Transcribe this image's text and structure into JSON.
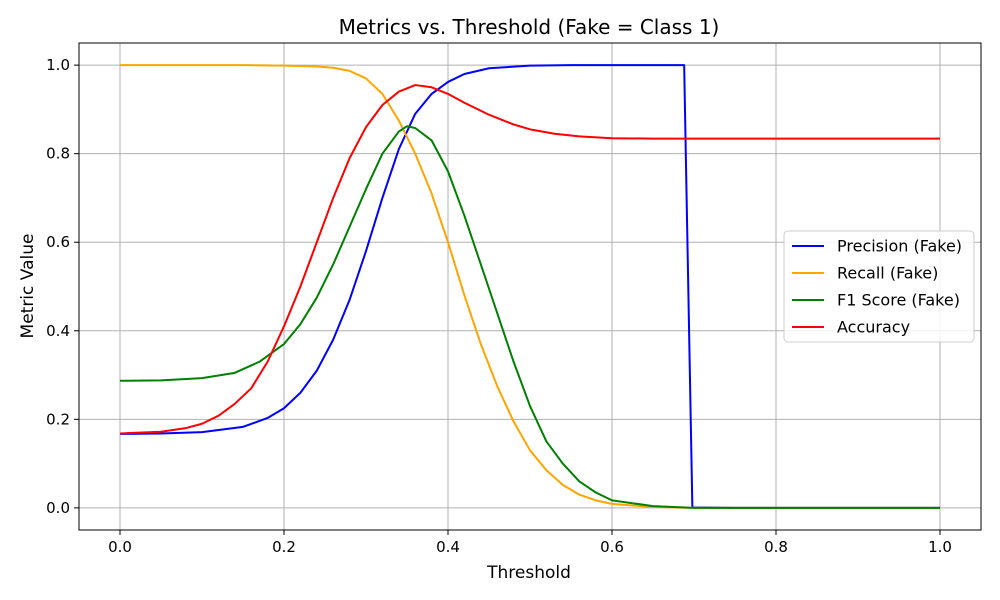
{
  "chart_data": {
    "type": "line",
    "title": "Metrics vs. Threshold (Fake = Class 1)",
    "xlabel": "Threshold",
    "ylabel": "Metric Value",
    "xlim": [
      -0.05,
      1.05
    ],
    "ylim": [
      -0.05,
      1.05
    ],
    "xticks": [
      0.0,
      0.2,
      0.4,
      0.6,
      0.8,
      1.0
    ],
    "xtick_labels": [
      "0.0",
      "0.2",
      "0.4",
      "0.6",
      "0.8",
      "1.0"
    ],
    "yticks": [
      0.0,
      0.2,
      0.4,
      0.6,
      0.8,
      1.0
    ],
    "ytick_labels": [
      "0.0",
      "0.2",
      "0.4",
      "0.6",
      "0.8",
      "1.0"
    ],
    "grid": true,
    "legend_position": "center-right",
    "series": [
      {
        "name": "Precision (Fake)",
        "color": "#0000ff",
        "points": [
          [
            0.0,
            0.167
          ],
          [
            0.05,
            0.168
          ],
          [
            0.1,
            0.171
          ],
          [
            0.15,
            0.183
          ],
          [
            0.18,
            0.203
          ],
          [
            0.2,
            0.225
          ],
          [
            0.22,
            0.26
          ],
          [
            0.24,
            0.31
          ],
          [
            0.26,
            0.38
          ],
          [
            0.28,
            0.47
          ],
          [
            0.3,
            0.58
          ],
          [
            0.32,
            0.7
          ],
          [
            0.34,
            0.81
          ],
          [
            0.36,
            0.89
          ],
          [
            0.38,
            0.935
          ],
          [
            0.4,
            0.962
          ],
          [
            0.42,
            0.98
          ],
          [
            0.45,
            0.993
          ],
          [
            0.5,
            0.999
          ],
          [
            0.55,
            1.0
          ],
          [
            0.6,
            1.0
          ],
          [
            0.65,
            1.0
          ],
          [
            0.688,
            1.0
          ],
          [
            0.698,
            0.001
          ],
          [
            0.75,
            0.0
          ],
          [
            0.8,
            0.0
          ],
          [
            0.9,
            0.0
          ],
          [
            1.0,
            0.0
          ]
        ]
      },
      {
        "name": "Recall (Fake)",
        "color": "#ffa500",
        "points": [
          [
            0.0,
            1.0
          ],
          [
            0.1,
            1.0
          ],
          [
            0.15,
            1.0
          ],
          [
            0.2,
            0.999
          ],
          [
            0.24,
            0.997
          ],
          [
            0.26,
            0.994
          ],
          [
            0.28,
            0.987
          ],
          [
            0.3,
            0.97
          ],
          [
            0.32,
            0.935
          ],
          [
            0.34,
            0.875
          ],
          [
            0.36,
            0.8
          ],
          [
            0.38,
            0.71
          ],
          [
            0.4,
            0.6
          ],
          [
            0.42,
            0.48
          ],
          [
            0.44,
            0.37
          ],
          [
            0.46,
            0.275
          ],
          [
            0.48,
            0.195
          ],
          [
            0.5,
            0.13
          ],
          [
            0.52,
            0.085
          ],
          [
            0.54,
            0.052
          ],
          [
            0.56,
            0.03
          ],
          [
            0.58,
            0.017
          ],
          [
            0.6,
            0.009
          ],
          [
            0.65,
            0.002
          ],
          [
            0.7,
            0.0
          ],
          [
            0.8,
            0.0
          ],
          [
            0.9,
            0.0
          ],
          [
            1.0,
            0.0
          ]
        ]
      },
      {
        "name": "F1 Score (Fake)",
        "color": "#008000",
        "points": [
          [
            0.0,
            0.287
          ],
          [
            0.05,
            0.288
          ],
          [
            0.1,
            0.293
          ],
          [
            0.14,
            0.305
          ],
          [
            0.17,
            0.33
          ],
          [
            0.2,
            0.37
          ],
          [
            0.22,
            0.415
          ],
          [
            0.24,
            0.475
          ],
          [
            0.26,
            0.55
          ],
          [
            0.28,
            0.635
          ],
          [
            0.3,
            0.72
          ],
          [
            0.32,
            0.8
          ],
          [
            0.34,
            0.85
          ],
          [
            0.35,
            0.862
          ],
          [
            0.36,
            0.858
          ],
          [
            0.38,
            0.83
          ],
          [
            0.4,
            0.76
          ],
          [
            0.42,
            0.66
          ],
          [
            0.44,
            0.55
          ],
          [
            0.46,
            0.44
          ],
          [
            0.48,
            0.33
          ],
          [
            0.5,
            0.23
          ],
          [
            0.52,
            0.15
          ],
          [
            0.54,
            0.1
          ],
          [
            0.56,
            0.06
          ],
          [
            0.58,
            0.035
          ],
          [
            0.6,
            0.017
          ],
          [
            0.65,
            0.004
          ],
          [
            0.7,
            0.0
          ],
          [
            0.8,
            0.0
          ],
          [
            0.9,
            0.0
          ],
          [
            1.0,
            0.0
          ]
        ]
      },
      {
        "name": "Accuracy",
        "color": "#ff0000",
        "points": [
          [
            0.0,
            0.168
          ],
          [
            0.05,
            0.172
          ],
          [
            0.08,
            0.18
          ],
          [
            0.1,
            0.19
          ],
          [
            0.12,
            0.208
          ],
          [
            0.14,
            0.235
          ],
          [
            0.16,
            0.27
          ],
          [
            0.18,
            0.33
          ],
          [
            0.2,
            0.41
          ],
          [
            0.22,
            0.5
          ],
          [
            0.24,
            0.6
          ],
          [
            0.26,
            0.7
          ],
          [
            0.28,
            0.79
          ],
          [
            0.3,
            0.86
          ],
          [
            0.32,
            0.91
          ],
          [
            0.34,
            0.94
          ],
          [
            0.36,
            0.955
          ],
          [
            0.38,
            0.95
          ],
          [
            0.4,
            0.935
          ],
          [
            0.42,
            0.915
          ],
          [
            0.45,
            0.888
          ],
          [
            0.48,
            0.866
          ],
          [
            0.5,
            0.855
          ],
          [
            0.53,
            0.845
          ],
          [
            0.56,
            0.839
          ],
          [
            0.6,
            0.835
          ],
          [
            0.65,
            0.834
          ],
          [
            0.7,
            0.834
          ],
          [
            0.8,
            0.834
          ],
          [
            0.9,
            0.834
          ],
          [
            1.0,
            0.834
          ]
        ]
      }
    ]
  }
}
